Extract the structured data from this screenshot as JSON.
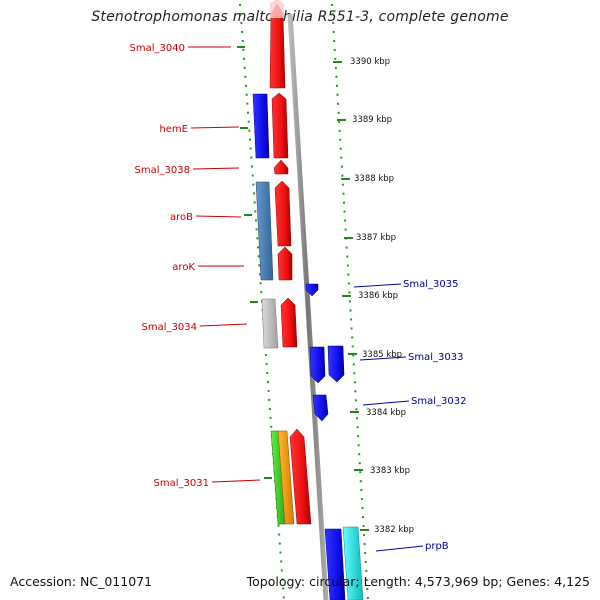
{
  "title": "Stenotrophomonas maltophilia R551-3, complete genome",
  "footer": {
    "accession": "Accession: NC_011071",
    "topology": "Topology: circular; Length: 4,573,969 bp; Genes: 4,125"
  },
  "ruler_ticks": [
    "3390 kbp",
    "3389 kbp",
    "3388 kbp",
    "3387 kbp",
    "3386 kbp",
    "3385 kbp",
    "3384 kbp",
    "3383 kbp",
    "3382 kbp"
  ],
  "genes_left": [
    {
      "label": "Smal_3040"
    },
    {
      "label": "hemE"
    },
    {
      "label": "Smal_3038"
    },
    {
      "label": "aroB"
    },
    {
      "label": "aroK"
    },
    {
      "label": "Smal_3034"
    },
    {
      "label": "Smal_3031"
    }
  ],
  "genes_right": [
    {
      "label": "Smal_3035"
    },
    {
      "label": "Smal_3033"
    },
    {
      "label": "Smal_3032"
    },
    {
      "label": "prpB"
    }
  ],
  "colors": {
    "forward": "#ee1111",
    "reverse": "#1111ee",
    "left_label": "#cc0000",
    "right_label": "#000099",
    "backbone": "#888888",
    "dots": "#22aa22"
  }
}
